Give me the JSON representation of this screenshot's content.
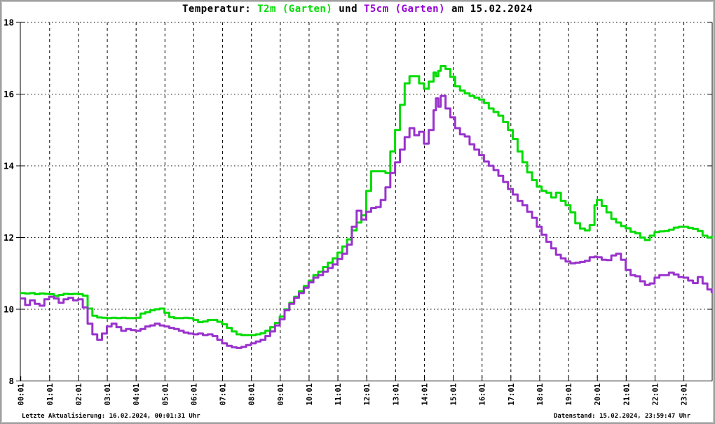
{
  "title": {
    "prefix": "Temperatur: ",
    "series1": "T2m (Garten)",
    "mid": " und ",
    "series2": "T5cm (Garten)",
    "suffix": " am 15.02.2024"
  },
  "footer": {
    "left": "Letzte Aktualisierung: 16.02.2024, 00:01:31 Uhr",
    "right": "Datenstand: 15.02.2024, 23:59:47 Uhr"
  },
  "colors": {
    "t2m_green": "#00DC00",
    "t5cm_purple": "#9932CC",
    "t5cm_title_purple": "#9400D3",
    "axis": "#000000",
    "grid": "#000000",
    "background": "#FFFFFF"
  },
  "chart_data": {
    "type": "line",
    "title": "Temperatur: T2m (Garten) und T5cm (Garten) am 15.02.2024",
    "date": "15.02.2024",
    "xlabel": "",
    "ylabel": "",
    "ylim": [
      8,
      18
    ],
    "yticks": [
      8,
      10,
      12,
      14,
      16,
      18
    ],
    "xticks": [
      "00:01",
      "01:01",
      "02:01",
      "03:01",
      "04:01",
      "05:01",
      "06:01",
      "07:01",
      "08:01",
      "09:01",
      "10:01",
      "11:01",
      "12:01",
      "13:01",
      "14:01",
      "15:01",
      "16:01",
      "17:01",
      "18:01",
      "19:01",
      "20:01",
      "21:01",
      "22:01",
      "23:01"
    ],
    "grid": true,
    "legend_position": "in-title",
    "series_meta": [
      {
        "name": "T2m (Garten)",
        "color": "#00DC00"
      },
      {
        "name": "T5cm (Garten)",
        "color": "#9932CC"
      }
    ],
    "points_format": [
      "time",
      "T2m_C",
      "T5cm_C"
    ],
    "points": [
      [
        "00:00",
        10.45,
        10.3
      ],
      [
        "00:10",
        10.44,
        10.12
      ],
      [
        "00:20",
        10.45,
        10.25
      ],
      [
        "00:30",
        10.42,
        10.15
      ],
      [
        "00:40",
        10.44,
        10.1
      ],
      [
        "00:50",
        10.43,
        10.28
      ],
      [
        "01:00",
        10.42,
        10.35
      ],
      [
        "01:10",
        10.37,
        10.3
      ],
      [
        "01:20",
        10.4,
        10.18
      ],
      [
        "01:30",
        10.43,
        10.28
      ],
      [
        "01:40",
        10.42,
        10.32
      ],
      [
        "01:50",
        10.43,
        10.25
      ],
      [
        "02:00",
        10.42,
        10.28
      ],
      [
        "02:10",
        10.38,
        10.05
      ],
      [
        "02:20",
        10.02,
        9.6
      ],
      [
        "02:30",
        9.82,
        9.3
      ],
      [
        "02:40",
        9.77,
        9.15
      ],
      [
        "02:50",
        9.76,
        9.32
      ],
      [
        "03:00",
        9.75,
        9.52
      ],
      [
        "03:10",
        9.76,
        9.6
      ],
      [
        "03:20",
        9.75,
        9.5
      ],
      [
        "03:30",
        9.76,
        9.4
      ],
      [
        "03:40",
        9.75,
        9.45
      ],
      [
        "03:50",
        9.75,
        9.42
      ],
      [
        "04:00",
        9.76,
        9.4
      ],
      [
        "04:10",
        9.88,
        9.45
      ],
      [
        "04:20",
        9.92,
        9.52
      ],
      [
        "04:30",
        9.97,
        9.55
      ],
      [
        "04:40",
        10.0,
        9.6
      ],
      [
        "04:50",
        10.02,
        9.55
      ],
      [
        "05:00",
        9.9,
        9.52
      ],
      [
        "05:10",
        9.78,
        9.48
      ],
      [
        "05:20",
        9.75,
        9.45
      ],
      [
        "05:30",
        9.75,
        9.4
      ],
      [
        "05:40",
        9.76,
        9.35
      ],
      [
        "05:50",
        9.75,
        9.32
      ],
      [
        "06:00",
        9.7,
        9.3
      ],
      [
        "06:10",
        9.64,
        9.32
      ],
      [
        "06:20",
        9.66,
        9.28
      ],
      [
        "06:30",
        9.7,
        9.3
      ],
      [
        "06:40",
        9.7,
        9.25
      ],
      [
        "06:50",
        9.65,
        9.15
      ],
      [
        "07:00",
        9.58,
        9.05
      ],
      [
        "07:10",
        9.48,
        8.98
      ],
      [
        "07:20",
        9.38,
        8.94
      ],
      [
        "07:30",
        9.3,
        8.92
      ],
      [
        "07:40",
        9.28,
        8.95
      ],
      [
        "07:50",
        9.28,
        9.0
      ],
      [
        "08:00",
        9.28,
        9.05
      ],
      [
        "08:10",
        9.3,
        9.1
      ],
      [
        "08:20",
        9.33,
        9.15
      ],
      [
        "08:30",
        9.4,
        9.25
      ],
      [
        "08:40",
        9.5,
        9.38
      ],
      [
        "08:50",
        9.62,
        9.55
      ],
      [
        "09:00",
        9.8,
        9.72
      ],
      [
        "09:10",
        10.0,
        9.97
      ],
      [
        "09:20",
        10.18,
        10.15
      ],
      [
        "09:30",
        10.35,
        10.32
      ],
      [
        "09:40",
        10.5,
        10.45
      ],
      [
        "09:50",
        10.65,
        10.6
      ],
      [
        "10:00",
        10.8,
        10.75
      ],
      [
        "10:10",
        10.95,
        10.88
      ],
      [
        "10:20",
        11.05,
        10.95
      ],
      [
        "10:30",
        11.18,
        11.05
      ],
      [
        "10:40",
        11.3,
        11.15
      ],
      [
        "10:50",
        11.42,
        11.25
      ],
      [
        "11:00",
        11.58,
        11.4
      ],
      [
        "11:10",
        11.75,
        11.55
      ],
      [
        "11:20",
        11.95,
        11.8
      ],
      [
        "11:30",
        12.2,
        12.3
      ],
      [
        "11:40",
        12.42,
        12.75
      ],
      [
        "11:50",
        12.62,
        12.5
      ],
      [
        "12:00",
        13.3,
        12.72
      ],
      [
        "12:10",
        13.85,
        12.82
      ],
      [
        "12:20",
        13.85,
        12.85
      ],
      [
        "12:30",
        13.85,
        13.05
      ],
      [
        "12:40",
        13.8,
        13.4
      ],
      [
        "12:50",
        14.4,
        13.8
      ],
      [
        "13:00",
        15.0,
        14.1
      ],
      [
        "13:10",
        15.7,
        14.45
      ],
      [
        "13:20",
        16.3,
        14.8
      ],
      [
        "13:30",
        16.5,
        15.05
      ],
      [
        "13:40",
        16.5,
        14.85
      ],
      [
        "13:50",
        16.3,
        14.95
      ],
      [
        "14:00",
        16.15,
        14.62
      ],
      [
        "14:10",
        16.35,
        15.0
      ],
      [
        "14:20",
        16.6,
        15.55
      ],
      [
        "14:25",
        16.5,
        15.88
      ],
      [
        "14:30",
        16.65,
        15.65
      ],
      [
        "14:35",
        16.78,
        15.95
      ],
      [
        "14:45",
        16.7,
        15.6
      ],
      [
        "14:55",
        16.48,
        15.35
      ],
      [
        "15:05",
        16.22,
        15.05
      ],
      [
        "15:15",
        16.1,
        14.88
      ],
      [
        "15:25",
        16.02,
        14.82
      ],
      [
        "15:35",
        15.95,
        14.6
      ],
      [
        "15:45",
        15.9,
        14.45
      ],
      [
        "15:55",
        15.85,
        14.3
      ],
      [
        "16:05",
        15.75,
        14.12
      ],
      [
        "16:15",
        15.6,
        14.0
      ],
      [
        "16:25",
        15.5,
        13.88
      ],
      [
        "16:35",
        15.4,
        13.72
      ],
      [
        "16:45",
        15.22,
        13.55
      ],
      [
        "16:55",
        15.0,
        13.35
      ],
      [
        "17:05",
        14.75,
        13.2
      ],
      [
        "17:15",
        14.4,
        13.02
      ],
      [
        "17:25",
        14.1,
        12.9
      ],
      [
        "17:35",
        13.82,
        12.72
      ],
      [
        "17:45",
        13.6,
        12.55
      ],
      [
        "17:55",
        13.42,
        12.3
      ],
      [
        "18:05",
        13.3,
        12.08
      ],
      [
        "18:15",
        13.25,
        11.88
      ],
      [
        "18:25",
        13.12,
        11.7
      ],
      [
        "18:35",
        13.25,
        11.52
      ],
      [
        "18:45",
        13.02,
        11.42
      ],
      [
        "18:55",
        12.9,
        11.33
      ],
      [
        "19:05",
        12.7,
        11.28
      ],
      [
        "19:15",
        12.4,
        11.3
      ],
      [
        "19:25",
        12.25,
        11.32
      ],
      [
        "19:35",
        12.2,
        11.35
      ],
      [
        "19:45",
        12.35,
        11.45
      ],
      [
        "19:55",
        12.9,
        11.47
      ],
      [
        "20:00",
        13.05,
        11.45
      ],
      [
        "20:10",
        12.88,
        11.38
      ],
      [
        "20:20",
        12.7,
        11.37
      ],
      [
        "20:30",
        12.52,
        11.5
      ],
      [
        "20:40",
        12.42,
        11.55
      ],
      [
        "20:50",
        12.32,
        11.38
      ],
      [
        "21:00",
        12.26,
        11.1
      ],
      [
        "21:10",
        12.16,
        10.95
      ],
      [
        "21:20",
        12.12,
        10.92
      ],
      [
        "21:30",
        12.0,
        10.78
      ],
      [
        "21:40",
        11.93,
        10.68
      ],
      [
        "21:50",
        12.05,
        10.72
      ],
      [
        "22:00",
        12.15,
        10.88
      ],
      [
        "22:10",
        12.17,
        10.95
      ],
      [
        "22:20",
        12.18,
        10.95
      ],
      [
        "22:30",
        12.22,
        11.02
      ],
      [
        "22:40",
        12.28,
        10.97
      ],
      [
        "22:50",
        12.3,
        10.9
      ],
      [
        "23:00",
        12.3,
        10.88
      ],
      [
        "23:10",
        12.27,
        10.8
      ],
      [
        "23:20",
        12.24,
        10.73
      ],
      [
        "23:30",
        12.18,
        10.9
      ],
      [
        "23:40",
        12.05,
        10.72
      ],
      [
        "23:50",
        12.0,
        10.55
      ],
      [
        "23:59",
        12.05,
        10.45
      ]
    ]
  }
}
